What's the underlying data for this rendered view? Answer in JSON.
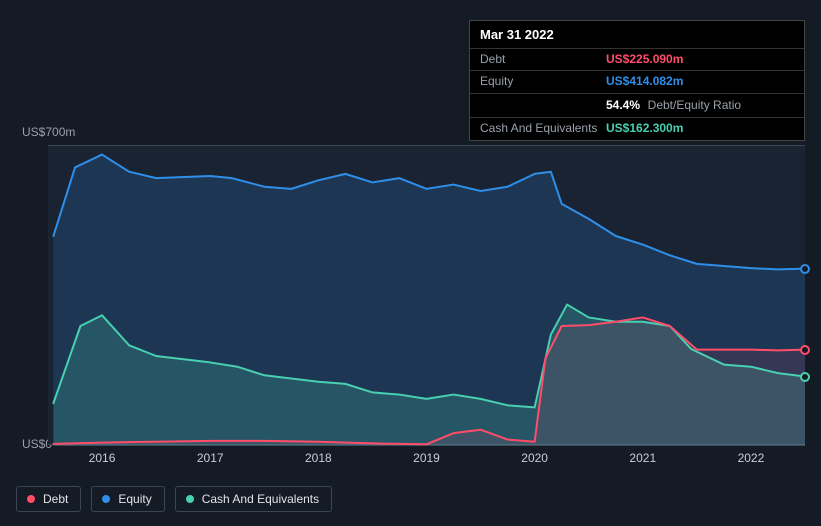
{
  "background_color": "#151b24",
  "plot_background": "#1a2332",
  "axis_line_color": "#3a4556",
  "axis_text_color": "#99a0a9",
  "tooltip": {
    "date": "Mar 31 2022",
    "rows": [
      {
        "label": "Debt",
        "value": "US$225.090m",
        "color": "#ff4d6a"
      },
      {
        "label": "Equity",
        "value": "US$414.082m",
        "color": "#2f8fe8"
      },
      {
        "label": "",
        "ratio_pct": "54.4%",
        "ratio_label": "Debt/Equity Ratio"
      },
      {
        "label": "Cash And Equivalents",
        "value": "US$162.300m",
        "color": "#49d0b0"
      }
    ]
  },
  "chart": {
    "type": "area",
    "ylim": [
      0,
      700
    ],
    "y_ticks": [
      {
        "v": 700,
        "label": "US$700m"
      },
      {
        "v": 0,
        "label": "US$0"
      }
    ],
    "x_domain": [
      2015.5,
      2022.5
    ],
    "x_ticks": [
      2016,
      2017,
      2018,
      2019,
      2020,
      2021,
      2022
    ],
    "series": [
      {
        "name": "Equity",
        "stroke": "#2f8fe8",
        "fill": "rgba(47,143,232,0.18)",
        "stroke_width": 2,
        "points": [
          [
            2015.55,
            490
          ],
          [
            2015.75,
            650
          ],
          [
            2016.0,
            680
          ],
          [
            2016.25,
            640
          ],
          [
            2016.5,
            625
          ],
          [
            2017.0,
            630
          ],
          [
            2017.2,
            625
          ],
          [
            2017.5,
            605
          ],
          [
            2017.75,
            600
          ],
          [
            2018.0,
            620
          ],
          [
            2018.25,
            635
          ],
          [
            2018.5,
            615
          ],
          [
            2018.75,
            625
          ],
          [
            2019.0,
            600
          ],
          [
            2019.25,
            610
          ],
          [
            2019.5,
            595
          ],
          [
            2019.75,
            605
          ],
          [
            2020.0,
            635
          ],
          [
            2020.15,
            640
          ],
          [
            2020.25,
            565
          ],
          [
            2020.5,
            530
          ],
          [
            2020.75,
            490
          ],
          [
            2021.0,
            470
          ],
          [
            2021.25,
            445
          ],
          [
            2021.5,
            425
          ],
          [
            2021.75,
            420
          ],
          [
            2022.0,
            415
          ],
          [
            2022.25,
            412
          ],
          [
            2022.5,
            414
          ]
        ]
      },
      {
        "name": "Cash And Equivalents",
        "stroke": "#49d0b0",
        "fill": "rgba(73,208,176,0.20)",
        "stroke_width": 2,
        "points": [
          [
            2015.55,
            100
          ],
          [
            2015.8,
            280
          ],
          [
            2016.0,
            305
          ],
          [
            2016.25,
            235
          ],
          [
            2016.5,
            210
          ],
          [
            2017.0,
            195
          ],
          [
            2017.25,
            185
          ],
          [
            2017.5,
            165
          ],
          [
            2018.0,
            150
          ],
          [
            2018.25,
            145
          ],
          [
            2018.5,
            125
          ],
          [
            2018.75,
            120
          ],
          [
            2019.0,
            110
          ],
          [
            2019.25,
            120
          ],
          [
            2019.5,
            110
          ],
          [
            2019.75,
            95
          ],
          [
            2020.0,
            90
          ],
          [
            2020.15,
            260
          ],
          [
            2020.3,
            330
          ],
          [
            2020.5,
            300
          ],
          [
            2020.75,
            290
          ],
          [
            2021.0,
            290
          ],
          [
            2021.25,
            280
          ],
          [
            2021.45,
            226
          ],
          [
            2021.75,
            190
          ],
          [
            2022.0,
            185
          ],
          [
            2022.25,
            170
          ],
          [
            2022.5,
            162
          ]
        ]
      },
      {
        "name": "Debt",
        "stroke": "#ff4d6a",
        "fill": "rgba(255,77,106,0.10)",
        "stroke_width": 2,
        "points": [
          [
            2015.55,
            5
          ],
          [
            2016.0,
            8
          ],
          [
            2016.5,
            10
          ],
          [
            2017.0,
            12
          ],
          [
            2017.5,
            12
          ],
          [
            2018.0,
            10
          ],
          [
            2018.5,
            6
          ],
          [
            2019.0,
            4
          ],
          [
            2019.25,
            30
          ],
          [
            2019.5,
            38
          ],
          [
            2019.75,
            15
          ],
          [
            2020.0,
            10
          ],
          [
            2020.1,
            205
          ],
          [
            2020.25,
            280
          ],
          [
            2020.5,
            282
          ],
          [
            2020.75,
            290
          ],
          [
            2021.0,
            300
          ],
          [
            2021.25,
            280
          ],
          [
            2021.5,
            225
          ],
          [
            2021.75,
            225
          ],
          [
            2022.0,
            225
          ],
          [
            2022.25,
            223
          ],
          [
            2022.5,
            225
          ]
        ]
      }
    ],
    "end_markers": [
      {
        "series": "Equity",
        "color": "#2f8fe8",
        "x": 2022.5,
        "y": 414
      },
      {
        "series": "Debt",
        "color": "#ff4d6a",
        "x": 2022.5,
        "y": 225
      },
      {
        "series": "Cash And Equivalents",
        "color": "#49d0b0",
        "x": 2022.5,
        "y": 162
      }
    ]
  },
  "legend": [
    {
      "label": "Debt",
      "color": "#ff4d6a"
    },
    {
      "label": "Equity",
      "color": "#2f8fe8"
    },
    {
      "label": "Cash And Equivalents",
      "color": "#49d0b0"
    }
  ]
}
